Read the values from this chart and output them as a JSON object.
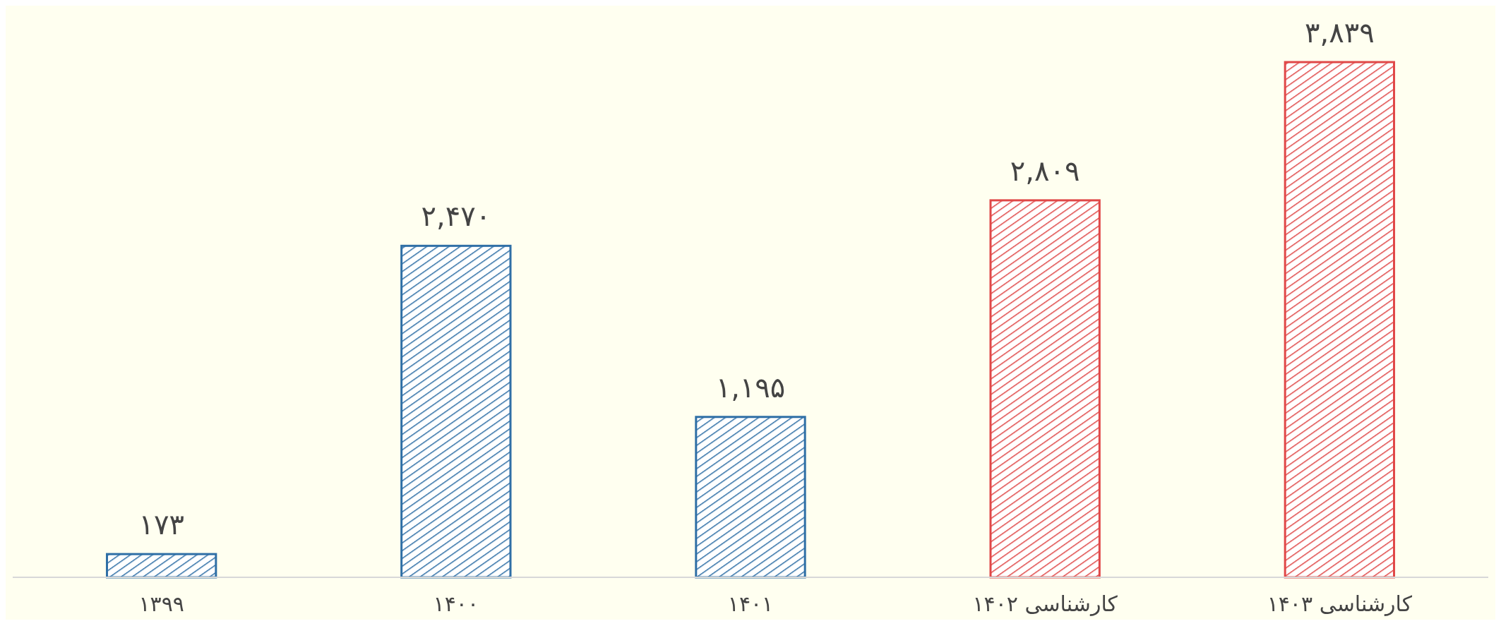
{
  "chart_data": {
    "type": "bar",
    "categories": [
      "۱۳۹۹",
      "۱۴۰۰",
      "۱۴۰۱",
      "کارشناسی ۱۴۰۲",
      "کارشناسی ۱۴۰۳"
    ],
    "values": [
      173,
      2470,
      1195,
      2809,
      3839
    ],
    "colors": [
      "#2f6fa6",
      "#2f6fa6",
      "#2f6fa6",
      "#e04848",
      "#e04848"
    ],
    "value_labels": [
      "۱۷۳",
      "۲,۴۷۰",
      "۱,۱۹۵",
      "۲,۸۰۹",
      "۳,۸۳۹"
    ]
  }
}
